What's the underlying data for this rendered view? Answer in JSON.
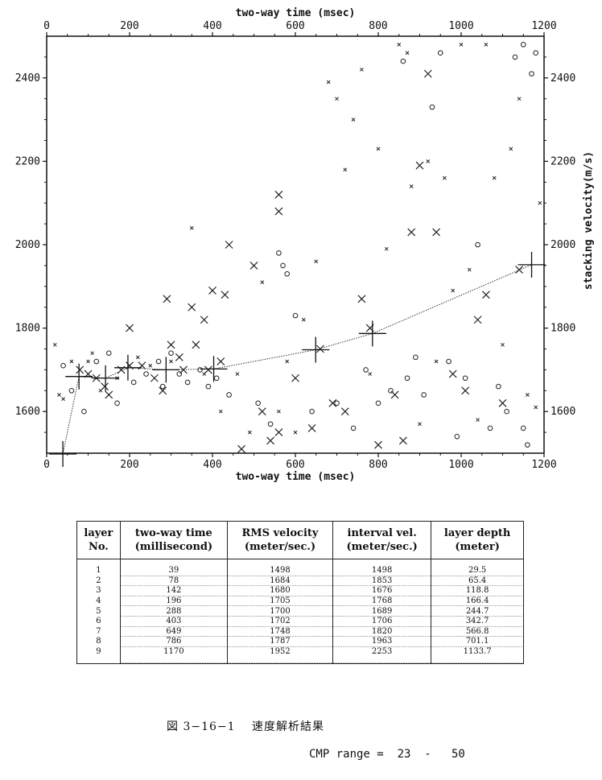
{
  "chart_data": {
    "type": "scatter",
    "xlabel_top": "two-way time (msec)",
    "xlabel_bottom": "two-way time (msec)",
    "ylabel_right": "stacking velocity(m/s)",
    "xlim": [
      0,
      1200
    ],
    "ylim": [
      1500,
      2500
    ],
    "x_ticks": [
      0,
      200,
      400,
      600,
      800,
      1000,
      1200
    ],
    "y_ticks": [
      1600,
      1800,
      2000,
      2200,
      2400
    ],
    "picks": {
      "name": "layer picks",
      "x": [
        39,
        78,
        142,
        196,
        288,
        403,
        649,
        786,
        1170
      ],
      "y": [
        1498,
        1684,
        1680,
        1705,
        1700,
        1702,
        1748,
        1787,
        1952
      ]
    },
    "scatter_x_large": [
      [
        80,
        1700
      ],
      [
        100,
        1690
      ],
      [
        120,
        1680
      ],
      [
        140,
        1660
      ],
      [
        150,
        1640
      ],
      [
        180,
        1700
      ],
      [
        200,
        1710
      ],
      [
        200,
        1800
      ],
      [
        230,
        1710
      ],
      [
        260,
        1680
      ],
      [
        280,
        1650
      ],
      [
        290,
        1870
      ],
      [
        300,
        1760
      ],
      [
        320,
        1730
      ],
      [
        330,
        1700
      ],
      [
        350,
        1850
      ],
      [
        360,
        1760
      ],
      [
        380,
        1820
      ],
      [
        390,
        1700
      ],
      [
        400,
        1890
      ],
      [
        420,
        1720
      ],
      [
        430,
        1880
      ],
      [
        440,
        2000
      ],
      [
        470,
        1510
      ],
      [
        500,
        1950
      ],
      [
        520,
        1600
      ],
      [
        540,
        1530
      ],
      [
        560,
        2080
      ],
      [
        560,
        2120
      ],
      [
        560,
        1550
      ],
      [
        600,
        1680
      ],
      [
        640,
        1560
      ],
      [
        660,
        1750
      ],
      [
        690,
        1620
      ],
      [
        720,
        1600
      ],
      [
        760,
        1870
      ],
      [
        780,
        1800
      ],
      [
        800,
        1520
      ],
      [
        840,
        1640
      ],
      [
        860,
        1530
      ],
      [
        880,
        2030
      ],
      [
        900,
        2190
      ],
      [
        920,
        2410
      ],
      [
        940,
        2030
      ],
      [
        980,
        1690
      ],
      [
        1010,
        1650
      ],
      [
        1040,
        1820
      ],
      [
        1060,
        1880
      ],
      [
        1100,
        1620
      ],
      [
        1140,
        1940
      ]
    ],
    "scatter_x_small": [
      [
        20,
        1760
      ],
      [
        30,
        1640
      ],
      [
        40,
        1630
      ],
      [
        60,
        1720
      ],
      [
        100,
        1720
      ],
      [
        110,
        1740
      ],
      [
        130,
        1650
      ],
      [
        170,
        1680
      ],
      [
        220,
        1730
      ],
      [
        250,
        1710
      ],
      [
        300,
        1720
      ],
      [
        350,
        2040
      ],
      [
        380,
        1690
      ],
      [
        420,
        1600
      ],
      [
        460,
        1690
      ],
      [
        490,
        1550
      ],
      [
        520,
        1910
      ],
      [
        560,
        1600
      ],
      [
        580,
        1720
      ],
      [
        600,
        1550
      ],
      [
        620,
        1820
      ],
      [
        650,
        1960
      ],
      [
        680,
        2390
      ],
      [
        700,
        2350
      ],
      [
        720,
        2180
      ],
      [
        740,
        2300
      ],
      [
        760,
        2420
      ],
      [
        780,
        1690
      ],
      [
        800,
        2230
      ],
      [
        820,
        1990
      ],
      [
        850,
        2480
      ],
      [
        870,
        2460
      ],
      [
        880,
        2140
      ],
      [
        900,
        1570
      ],
      [
        920,
        2200
      ],
      [
        940,
        1720
      ],
      [
        960,
        2160
      ],
      [
        980,
        1890
      ],
      [
        1000,
        2480
      ],
      [
        1020,
        1940
      ],
      [
        1040,
        1580
      ],
      [
        1060,
        2480
      ],
      [
        1080,
        2160
      ],
      [
        1100,
        1760
      ],
      [
        1120,
        2230
      ],
      [
        1140,
        2350
      ],
      [
        1160,
        1640
      ],
      [
        1180,
        1610
      ],
      [
        1190,
        2100
      ]
    ],
    "scatter_o": [
      [
        40,
        1710
      ],
      [
        60,
        1650
      ],
      [
        90,
        1600
      ],
      [
        120,
        1720
      ],
      [
        150,
        1740
      ],
      [
        170,
        1620
      ],
      [
        210,
        1670
      ],
      [
        240,
        1690
      ],
      [
        270,
        1720
      ],
      [
        280,
        1660
      ],
      [
        300,
        1740
      ],
      [
        320,
        1690
      ],
      [
        340,
        1670
      ],
      [
        370,
        1700
      ],
      [
        390,
        1660
      ],
      [
        410,
        1680
      ],
      [
        440,
        1640
      ],
      [
        510,
        1620
      ],
      [
        540,
        1570
      ],
      [
        560,
        1980
      ],
      [
        570,
        1950
      ],
      [
        580,
        1930
      ],
      [
        600,
        1830
      ],
      [
        640,
        1600
      ],
      [
        700,
        1620
      ],
      [
        740,
        1560
      ],
      [
        770,
        1700
      ],
      [
        800,
        1620
      ],
      [
        830,
        1650
      ],
      [
        860,
        2440
      ],
      [
        870,
        1680
      ],
      [
        890,
        1730
      ],
      [
        910,
        1640
      ],
      [
        930,
        2330
      ],
      [
        950,
        2460
      ],
      [
        970,
        1720
      ],
      [
        990,
        1540
      ],
      [
        1010,
        1680
      ],
      [
        1040,
        2000
      ],
      [
        1070,
        1560
      ],
      [
        1090,
        1660
      ],
      [
        1110,
        1600
      ],
      [
        1130,
        2450
      ],
      [
        1150,
        2480
      ],
      [
        1170,
        2410
      ],
      [
        1180,
        2460
      ],
      [
        1150,
        1560
      ],
      [
        1160,
        1520
      ]
    ]
  },
  "table": {
    "headers": [
      [
        "layer",
        "No."
      ],
      [
        "two-way time",
        "(millisecond)"
      ],
      [
        "RMS velocity",
        "(meter/sec.)"
      ],
      [
        "interval vel.",
        "(meter/sec.)"
      ],
      [
        "layer depth",
        "(meter)"
      ]
    ],
    "rows": [
      [
        "1",
        "39",
        "1498",
        "1498",
        "29.5"
      ],
      [
        "2",
        "78",
        "1684",
        "1853",
        "65.4"
      ],
      [
        "3",
        "142",
        "1680",
        "1676",
        "118.8"
      ],
      [
        "4",
        "196",
        "1705",
        "1768",
        "166.4"
      ],
      [
        "5",
        "288",
        "1700",
        "1689",
        "244.7"
      ],
      [
        "6",
        "403",
        "1702",
        "1706",
        "342.7"
      ],
      [
        "7",
        "649",
        "1748",
        "1820",
        "566.8"
      ],
      [
        "8",
        "786",
        "1787",
        "1963",
        "701.1"
      ],
      [
        "9",
        "1170",
        "1952",
        "2253",
        "1133.7"
      ]
    ]
  },
  "caption": "図 3−16−1　 速度解析結果",
  "cmp_range": "CMP range =  23  -   50"
}
